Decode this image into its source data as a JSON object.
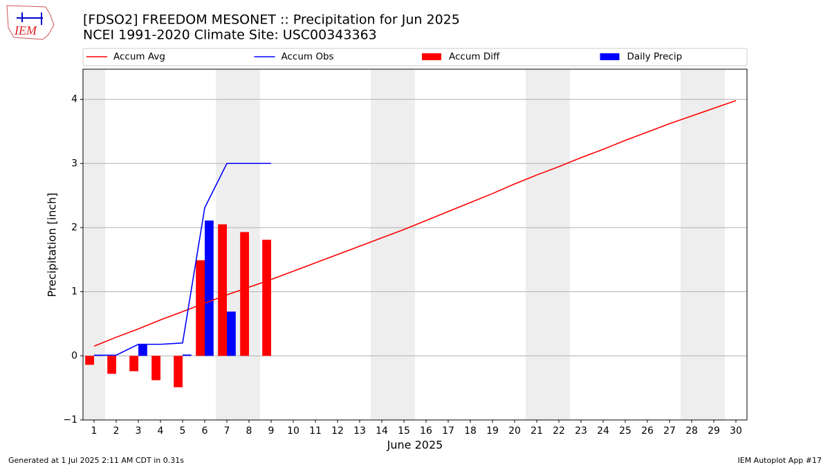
{
  "logo_text": "IEM",
  "footer_left": "Generated at 1 Jul 2025 2:11 AM CDT in 0.31s",
  "footer_right": "IEM Autoplot App #17",
  "chart_data": {
    "type": "bar",
    "title": "[FDSO2] FREEDOM MESONET :: Precipitation for Jun 2025",
    "subtitle": "NCEI 1991-2020 Climate Site: USC00343363",
    "ylabel": "Precipitation [inch]",
    "xlabel": "June 2025",
    "x": [
      1,
      2,
      3,
      4,
      5,
      6,
      7,
      8,
      9,
      10,
      11,
      12,
      13,
      14,
      15,
      16,
      17,
      18,
      19,
      20,
      21,
      22,
      23,
      24,
      25,
      26,
      27,
      28,
      29,
      30
    ],
    "xlim": [
      0.5,
      30.5
    ],
    "xticks": [
      1,
      2,
      3,
      4,
      5,
      6,
      7,
      8,
      9,
      10,
      11,
      12,
      13,
      14,
      15,
      16,
      17,
      18,
      19,
      20,
      21,
      22,
      23,
      24,
      25,
      26,
      27,
      28,
      29,
      30
    ],
    "ylim": [
      -1,
      4.47
    ],
    "yticks": [
      {
        "value": -1,
        "label": "−1"
      },
      0,
      1,
      2,
      3,
      4
    ],
    "grid": true,
    "shaded_days": [
      1,
      7,
      8,
      14,
      15,
      21,
      22,
      28,
      29
    ],
    "series": [
      {
        "name": "Accum Avg",
        "type": "line",
        "color": "#ff0000",
        "values": [
          0.15,
          0.29,
          0.42,
          0.56,
          0.69,
          0.82,
          0.95,
          1.07,
          1.19,
          1.32,
          1.45,
          1.58,
          1.71,
          1.84,
          1.97,
          2.11,
          2.25,
          2.39,
          2.53,
          2.68,
          2.82,
          2.95,
          3.09,
          3.22,
          3.36,
          3.49,
          3.62,
          3.74,
          3.86,
          3.98
        ]
      },
      {
        "name": "Accum Obs",
        "type": "line",
        "color": "#0000ff",
        "values": [
          0.01,
          0.01,
          0.18,
          0.18,
          0.2,
          2.31,
          3.0,
          3.0,
          3.0,
          null,
          null,
          null,
          null,
          null,
          null,
          null,
          null,
          null,
          null,
          null,
          null,
          null,
          null,
          null,
          null,
          null,
          null,
          null,
          null,
          null
        ]
      },
      {
        "name": "Accum Diff",
        "type": "bar",
        "color": "#ff0000",
        "values": [
          -0.14,
          -0.28,
          -0.24,
          -0.38,
          -0.49,
          1.49,
          2.05,
          1.93,
          1.81,
          null,
          null,
          null,
          null,
          null,
          null,
          null,
          null,
          null,
          null,
          null,
          null,
          null,
          null,
          null,
          null,
          null,
          null,
          null,
          null,
          null
        ]
      },
      {
        "name": "Daily Precip",
        "type": "bar",
        "color": "#0000ff",
        "values": [
          0.01,
          0,
          0.18,
          0,
          0.02,
          2.11,
          0.69,
          0,
          0,
          null,
          null,
          null,
          null,
          null,
          null,
          null,
          null,
          null,
          null,
          null,
          null,
          null,
          null,
          null,
          null,
          null,
          null,
          null,
          null,
          null
        ]
      }
    ]
  }
}
